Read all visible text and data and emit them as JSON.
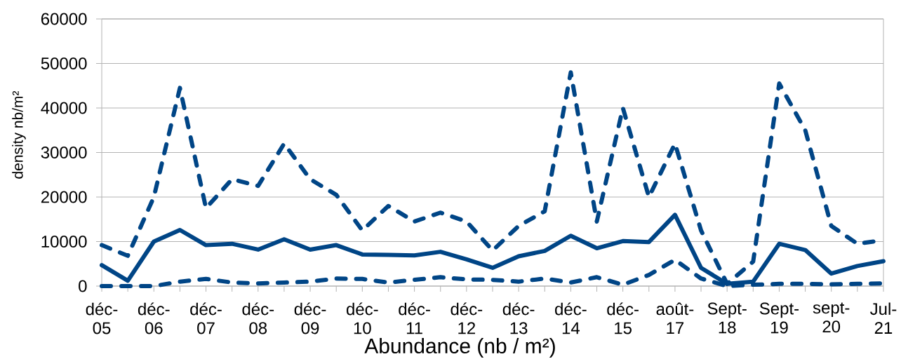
{
  "chart_data": {
    "type": "line",
    "xlabel": "Abundance (nb / m²)",
    "ylabel": "density nb/m²",
    "categories": [
      "déc-05",
      null,
      "déc-06",
      null,
      "déc-07",
      null,
      "déc-08",
      null,
      "déc-09",
      null,
      "déc-10",
      null,
      "déc-11",
      null,
      "déc-12",
      null,
      "déc-13",
      null,
      "déc-14",
      null,
      "déc-15",
      null,
      "août-17",
      null,
      "Sept-18",
      null,
      "Sept-19",
      null,
      "sept-20",
      null,
      "Jul-21"
    ],
    "series": [
      {
        "color": "#004586",
        "line_style": "dashed",
        "values": [
          9200,
          6800,
          20000,
          44500,
          17500,
          24000,
          22500,
          32000,
          24000,
          20500,
          12500,
          18000,
          14500,
          16500,
          14500,
          8000,
          13500,
          16800,
          48000,
          14500,
          40000,
          20000,
          32000,
          12500,
          500,
          5500,
          45500,
          35000,
          13500,
          9500,
          10300
        ]
      },
      {
        "color": "#004586",
        "line_style": "solid",
        "values": [
          4700,
          1200,
          10000,
          12600,
          9200,
          9500,
          8200,
          10500,
          8200,
          9200,
          7100,
          7000,
          6900,
          7700,
          6000,
          4100,
          6700,
          7900,
          11300,
          8500,
          10100,
          9900,
          16000,
          4100,
          500,
          1000,
          9500,
          8100,
          2800,
          4500,
          5600
        ]
      },
      {
        "color": "#004586",
        "line_style": "dashed",
        "values": [
          0,
          0,
          0,
          1000,
          1600,
          800,
          600,
          800,
          1000,
          1700,
          1600,
          800,
          1400,
          2000,
          1500,
          1400,
          1000,
          1700,
          800,
          2000,
          300,
          2500,
          5900,
          1700,
          0,
          300,
          500,
          500,
          400,
          500,
          600
        ]
      }
    ],
    "ylim": [
      0,
      60000
    ],
    "yticks": [
      0,
      10000,
      20000,
      30000,
      40000,
      50000,
      60000
    ],
    "grid": "y"
  }
}
